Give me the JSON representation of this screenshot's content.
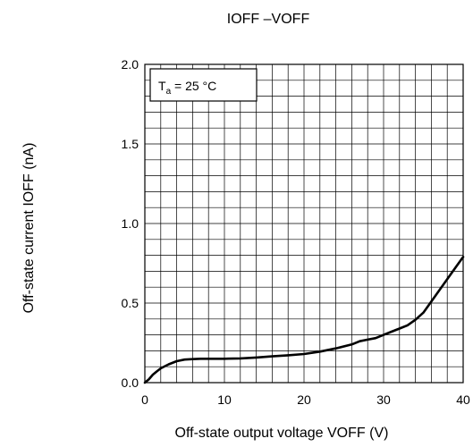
{
  "chart_data": {
    "type": "line",
    "title": "IOFF –VOFF",
    "xlabel": "Off-state output voltage VOFF (V)",
    "ylabel": "Off-state current IOFF (nA)",
    "xlim": [
      0,
      40
    ],
    "ylim": [
      0,
      2.0
    ],
    "x_ticks": [
      "0",
      "10",
      "20",
      "30",
      "40"
    ],
    "y_ticks": [
      "0.0",
      "0.5",
      "1.0",
      "1.5",
      "2.0"
    ],
    "grid": true,
    "annotation": {
      "prefix": "T",
      "sub": "a",
      "suffix": " = 25 °C"
    },
    "series": [
      {
        "x": [
          0,
          0.5,
          1,
          1.5,
          2,
          3,
          4,
          5,
          6,
          7,
          8,
          10,
          12,
          14,
          16,
          18,
          20,
          22,
          24,
          26,
          27,
          28,
          29,
          30,
          31,
          32,
          33,
          34,
          35,
          36,
          37,
          38,
          39,
          40
        ],
        "y": [
          0.0,
          0.02,
          0.05,
          0.07,
          0.09,
          0.115,
          0.135,
          0.145,
          0.148,
          0.15,
          0.15,
          0.15,
          0.152,
          0.158,
          0.165,
          0.172,
          0.18,
          0.195,
          0.215,
          0.24,
          0.26,
          0.27,
          0.28,
          0.3,
          0.32,
          0.34,
          0.36,
          0.395,
          0.44,
          0.51,
          0.58,
          0.65,
          0.72,
          0.79
        ]
      }
    ]
  }
}
